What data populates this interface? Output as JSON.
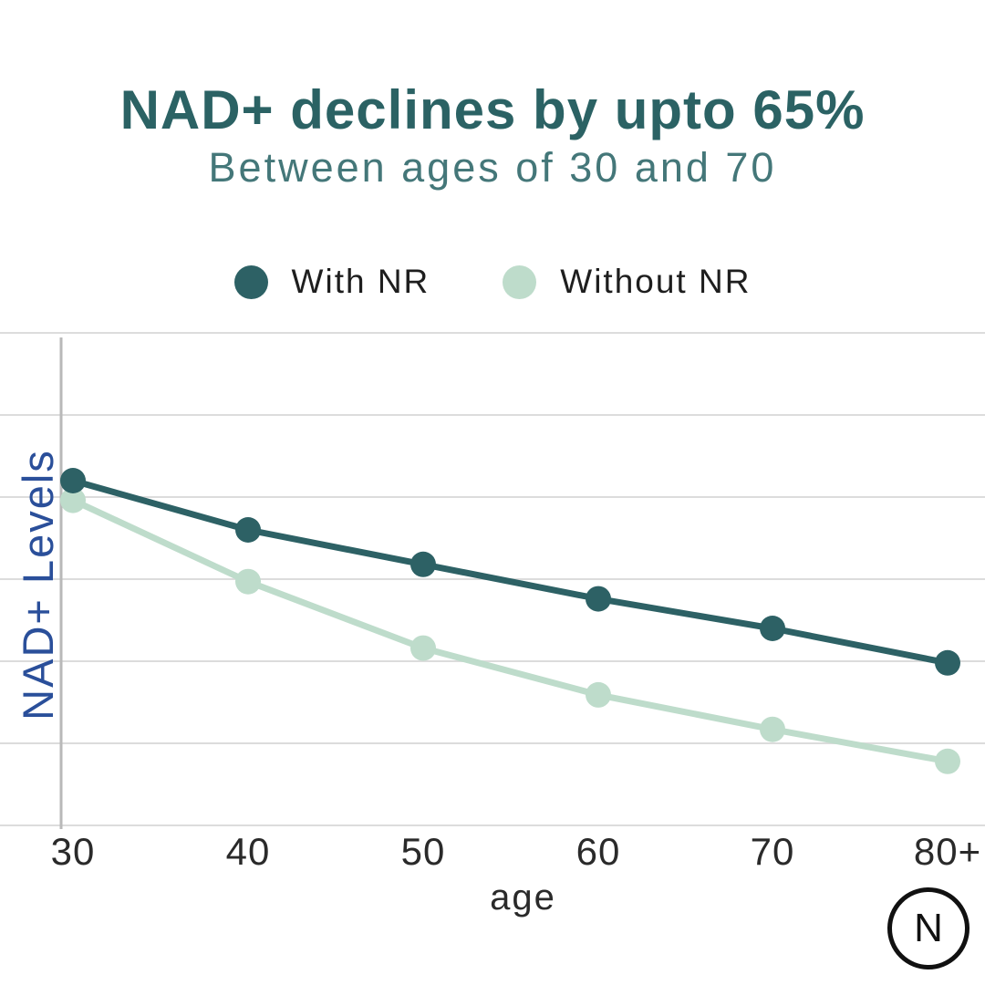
{
  "header": {
    "title": "NAD+ declines by upto 65%",
    "subtitle": "Between ages of 30 and 70"
  },
  "chart_data": {
    "type": "line",
    "title": "NAD+ declines by upto 65%",
    "subtitle": "Between ages of 30 and 70",
    "x": [
      "30",
      "40",
      "50",
      "60",
      "70",
      "80+"
    ],
    "xlabel": "age",
    "ylabel": "NAD+ Levels",
    "ylim": [
      0,
      100
    ],
    "y_ticks_visible": false,
    "grid": true,
    "legend_position": "top-center",
    "series": [
      {
        "name": "With NR",
        "color": "#2d6165",
        "values": [
          70,
          60,
          53,
          46,
          40,
          33
        ]
      },
      {
        "name": "Without NR",
        "color": "#bedccb",
        "values": [
          66,
          49.5,
          36,
          26.5,
          19.5,
          13
        ]
      }
    ]
  },
  "colors": {
    "title": "#2b6264",
    "subtitle": "#447779",
    "legend_text": "#1e1e1e",
    "tick_text": "#2a2a2a",
    "ylabel": "#2a4f9a",
    "gridline": "#dcdcdc",
    "axis_line": "#b9b9b9",
    "logo": "#111111"
  },
  "logo": {
    "letter": "N"
  }
}
